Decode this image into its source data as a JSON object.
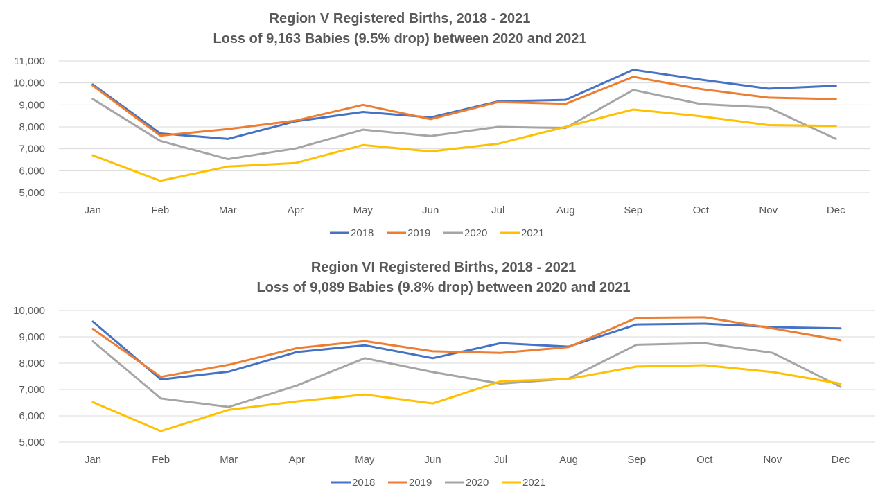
{
  "chart_data": [
    {
      "type": "line",
      "title": "Region V Registered Births, 2018 - 2021",
      "subtitle": "Loss of 9,163 Babies (9.5% drop) between 2020 and 2021",
      "xlabel": "",
      "ylabel": "",
      "categories": [
        "Jan",
        "Feb",
        "Mar",
        "Apr",
        "May",
        "Jun",
        "Jul",
        "Aug",
        "Sep",
        "Oct",
        "Nov",
        "Dec"
      ],
      "ylim": [
        5000,
        11000
      ],
      "yticks": [
        "5,000",
        "6,000",
        "7,000",
        "8,000",
        "9,000",
        "10,000",
        "11,000"
      ],
      "grid": true,
      "legend": "bottom",
      "series": [
        {
          "name": "2018",
          "color": "#4472c4",
          "values": [
            9930,
            7700,
            7450,
            8250,
            8680,
            8430,
            9160,
            9230,
            10600,
            10150,
            9740,
            9870
          ]
        },
        {
          "name": "2019",
          "color": "#ed7d31",
          "values": [
            9880,
            7600,
            7900,
            8280,
            9000,
            8350,
            9130,
            9050,
            10280,
            9720,
            9330,
            9260
          ]
        },
        {
          "name": "2020",
          "color": "#a5a5a5",
          "values": [
            9270,
            7360,
            6530,
            7010,
            7870,
            7580,
            8000,
            7950,
            9680,
            9040,
            8880,
            7450
          ]
        },
        {
          "name": "2021",
          "color": "#ffc000",
          "values": [
            6700,
            5540,
            6190,
            6350,
            7170,
            6880,
            7230,
            8000,
            8790,
            8480,
            8080,
            8040
          ]
        }
      ]
    },
    {
      "type": "line",
      "title": "Region VI Registered Births, 2018 - 2021",
      "subtitle": "Loss of 9,089 Babies (9.8% drop) between 2020 and 2021",
      "xlabel": "",
      "ylabel": "",
      "categories": [
        "Jan",
        "Feb",
        "Mar",
        "Apr",
        "May",
        "Jun",
        "Jul",
        "Aug",
        "Sep",
        "Oct",
        "Nov",
        "Dec"
      ],
      "ylim": [
        5000,
        10000
      ],
      "yticks": [
        "5,000",
        "6,000",
        "7,000",
        "8,000",
        "9,000",
        "10,000"
      ],
      "grid": true,
      "legend": "bottom",
      "series": [
        {
          "name": "2018",
          "color": "#4472c4",
          "values": [
            9580,
            7380,
            7680,
            8420,
            8680,
            8190,
            8760,
            8630,
            9470,
            9500,
            9370,
            9320
          ]
        },
        {
          "name": "2019",
          "color": "#ed7d31",
          "values": [
            9300,
            7480,
            7940,
            8570,
            8840,
            8450,
            8390,
            8610,
            9720,
            9740,
            9320,
            8870
          ]
        },
        {
          "name": "2020",
          "color": "#a5a5a5",
          "values": [
            8830,
            6660,
            6340,
            7150,
            8190,
            7660,
            7220,
            7410,
            8700,
            8760,
            8390,
            7100
          ]
        },
        {
          "name": "2021",
          "color": "#ffc000",
          "values": [
            6520,
            5420,
            6230,
            6550,
            6810,
            6470,
            7310,
            7400,
            7870,
            7920,
            7660,
            7220
          ]
        }
      ]
    }
  ]
}
